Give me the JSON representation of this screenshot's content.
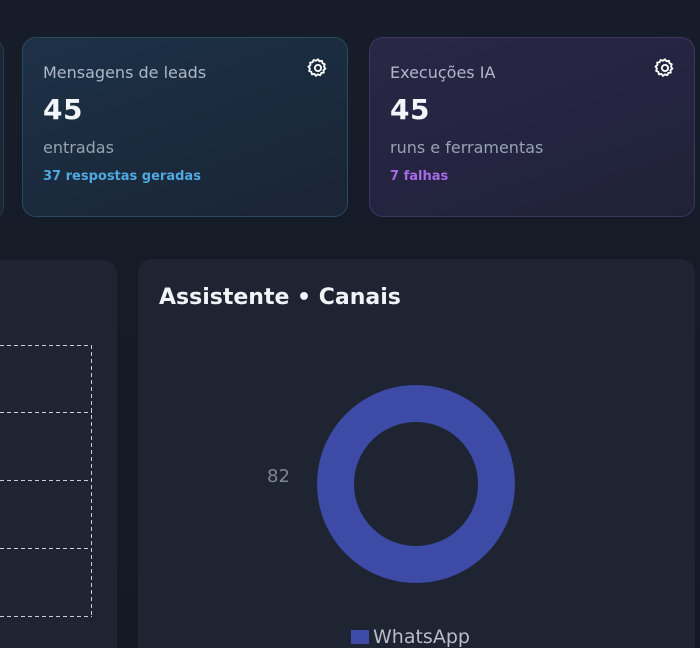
{
  "cards": {
    "leads": {
      "title": "Mensagens de leads",
      "value": "45",
      "subtitle": "entradas",
      "note": "37 respostas geradas",
      "settings_icon": "gear-icon"
    },
    "ia": {
      "title": "Execuções IA",
      "value": "45",
      "subtitle": "runs e ferramentas",
      "note": "7 falhas",
      "settings_icon": "gear-icon"
    }
  },
  "colors": {
    "leads_note": "#4fa9e0",
    "ia_note": "#a66ae8",
    "donut": "#3d4aa6"
  },
  "channels_panel": {
    "title": "Assistente • Canais",
    "value_label": "82",
    "legend": [
      "WhatsApp"
    ]
  },
  "chart_data": {
    "type": "pie",
    "title": "Assistente • Canais",
    "categories": [
      "WhatsApp"
    ],
    "values": [
      82
    ]
  }
}
